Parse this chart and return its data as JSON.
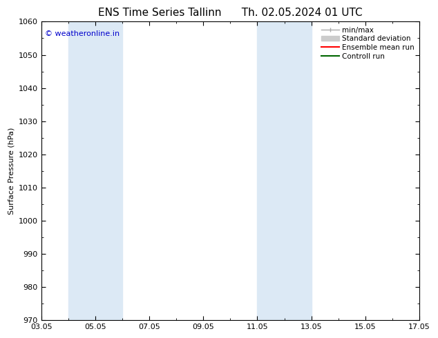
{
  "title_left": "ENS Time Series Tallinn",
  "title_right": "Th. 02.05.2024 01 UTC",
  "ylabel": "Surface Pressure (hPa)",
  "ylim": [
    970,
    1060
  ],
  "yticks": [
    970,
    980,
    990,
    1000,
    1010,
    1020,
    1030,
    1040,
    1050,
    1060
  ],
  "xtick_labels": [
    "03.05",
    "05.05",
    "07.05",
    "09.05",
    "11.05",
    "13.05",
    "15.05",
    "17.05"
  ],
  "xtick_positions": [
    0,
    2,
    4,
    6,
    8,
    10,
    12,
    14
  ],
  "xlim": [
    0,
    14
  ],
  "shaded_bands": [
    {
      "x_start": 1.0,
      "x_end": 3.0,
      "color": "#dce9f5"
    },
    {
      "x_start": 8.0,
      "x_end": 10.0,
      "color": "#dce9f5"
    }
  ],
  "watermark_text": "© weatheronline.in",
  "watermark_color": "#0000cc",
  "watermark_fontsize": 8,
  "bg_color": "#ffffff",
  "plot_bg_color": "#ffffff",
  "title_fontsize": 11,
  "tick_fontsize": 8,
  "ylabel_fontsize": 8,
  "legend_fontsize": 7.5,
  "font_family": "DejaVu Sans",
  "legend_entries": [
    {
      "label": "min/max",
      "color": "#aaaaaa"
    },
    {
      "label": "Standard deviation",
      "color": "#cccccc"
    },
    {
      "label": "Ensemble mean run",
      "color": "#ff0000"
    },
    {
      "label": "Controll run",
      "color": "#006600"
    }
  ]
}
